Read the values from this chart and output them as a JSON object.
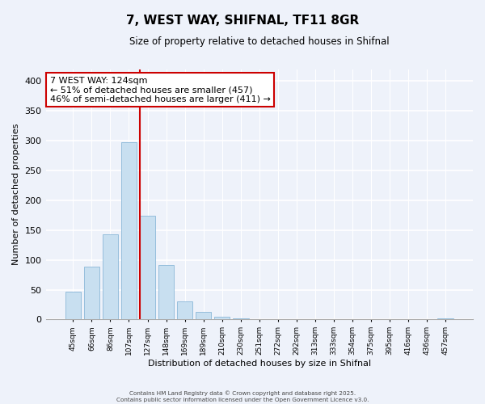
{
  "title": "7, WEST WAY, SHIFNAL, TF11 8GR",
  "subtitle": "Size of property relative to detached houses in Shifnal",
  "xlabel": "Distribution of detached houses by size in Shifnal",
  "ylabel": "Number of detached properties",
  "bar_color": "#c8dff0",
  "bar_edge_color": "#8ab8d8",
  "vline_color": "#cc0000",
  "categories": [
    "45sqm",
    "66sqm",
    "86sqm",
    "107sqm",
    "127sqm",
    "148sqm",
    "169sqm",
    "189sqm",
    "210sqm",
    "230sqm",
    "251sqm",
    "272sqm",
    "292sqm",
    "313sqm",
    "333sqm",
    "354sqm",
    "375sqm",
    "395sqm",
    "416sqm",
    "436sqm",
    "457sqm"
  ],
  "values": [
    47,
    89,
    143,
    298,
    174,
    92,
    30,
    13,
    5,
    2,
    0,
    0,
    0,
    0,
    0,
    0,
    0,
    0,
    0,
    0,
    2
  ],
  "ylim": [
    0,
    420
  ],
  "yticks": [
    0,
    50,
    100,
    150,
    200,
    250,
    300,
    350,
    400
  ],
  "annotation_title": "7 WEST WAY: 124sqm",
  "annotation_line1": "← 51% of detached houses are smaller (457)",
  "annotation_line2": "46% of semi-detached houses are larger (411) →",
  "footer_line1": "Contains HM Land Registry data © Crown copyright and database right 2025.",
  "footer_line2": "Contains public sector information licensed under the Open Government Licence v3.0.",
  "bg_color": "#eef2fa"
}
